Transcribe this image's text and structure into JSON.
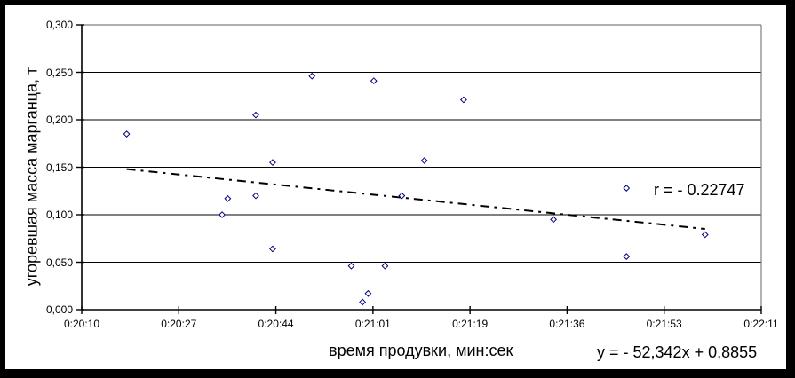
{
  "chart_data": {
    "type": "scatter",
    "title": "",
    "xlabel": "время продувки, мин:сек",
    "ylabel": "угоревшая масса марганца, т",
    "x_tick_labels": [
      "0:20:10",
      "0:20:27",
      "0:20:44",
      "0:21:01",
      "0:21:19",
      "0:21:36",
      "0:21:53",
      "0:22:11"
    ],
    "x_range_seconds": [
      1210,
      1331
    ],
    "y_tick_labels": [
      "0,300",
      "0,250",
      "0,200",
      "0,150",
      "0,100",
      "0,050",
      "0,000"
    ],
    "ylim": [
      0,
      0.3
    ],
    "grid": "horizontal-only",
    "legend_position": "none",
    "points": [
      {
        "time": "0:20:18",
        "seconds": 1218,
        "mass_t": 0.185
      },
      {
        "time": "0:20:35",
        "seconds": 1235,
        "mass_t": 0.1
      },
      {
        "time": "0:20:36",
        "seconds": 1236,
        "mass_t": 0.117
      },
      {
        "time": "0:20:41",
        "seconds": 1241,
        "mass_t": 0.205
      },
      {
        "time": "0:20:41",
        "seconds": 1241,
        "mass_t": 0.12
      },
      {
        "time": "0:20:44",
        "seconds": 1244,
        "mass_t": 0.155
      },
      {
        "time": "0:20:44",
        "seconds": 1244,
        "mass_t": 0.064
      },
      {
        "time": "0:20:51",
        "seconds": 1251,
        "mass_t": 0.246
      },
      {
        "time": "0:20:58",
        "seconds": 1258,
        "mass_t": 0.046
      },
      {
        "time": "0:21:00",
        "seconds": 1260,
        "mass_t": 0.008
      },
      {
        "time": "0:21:01",
        "seconds": 1261,
        "mass_t": 0.017
      },
      {
        "time": "0:21:02",
        "seconds": 1262,
        "mass_t": 0.241
      },
      {
        "time": "0:21:04",
        "seconds": 1264,
        "mass_t": 0.046
      },
      {
        "time": "0:21:07",
        "seconds": 1267,
        "mass_t": 0.12
      },
      {
        "time": "0:21:11",
        "seconds": 1271,
        "mass_t": 0.157
      },
      {
        "time": "0:21:18",
        "seconds": 1278,
        "mass_t": 0.221
      },
      {
        "time": "0:21:34",
        "seconds": 1294,
        "mass_t": 0.095
      },
      {
        "time": "0:21:47",
        "seconds": 1307,
        "mass_t": 0.128
      },
      {
        "time": "0:21:47",
        "seconds": 1307,
        "mass_t": 0.056
      },
      {
        "time": "0:22:01",
        "seconds": 1321,
        "mass_t": 0.079
      }
    ],
    "trendline": {
      "style": "dash-dot",
      "start": {
        "seconds": 1218,
        "mass_t": 0.148
      },
      "end": {
        "seconds": 1321,
        "mass_t": 0.085
      }
    },
    "annotations": {
      "correlation": "r = - 0.22747",
      "equation": "y = - 52,342x + 0,8855"
    },
    "colors": {
      "marker_outline": "#000080",
      "marker_fill": "#ffffff",
      "trendline": "#000000",
      "gridline": "#000000",
      "plot_border": "#808080",
      "axis": "#000000",
      "text": "#000000",
      "chart_background": "#ffffff",
      "outer_frame": "#000000"
    }
  }
}
